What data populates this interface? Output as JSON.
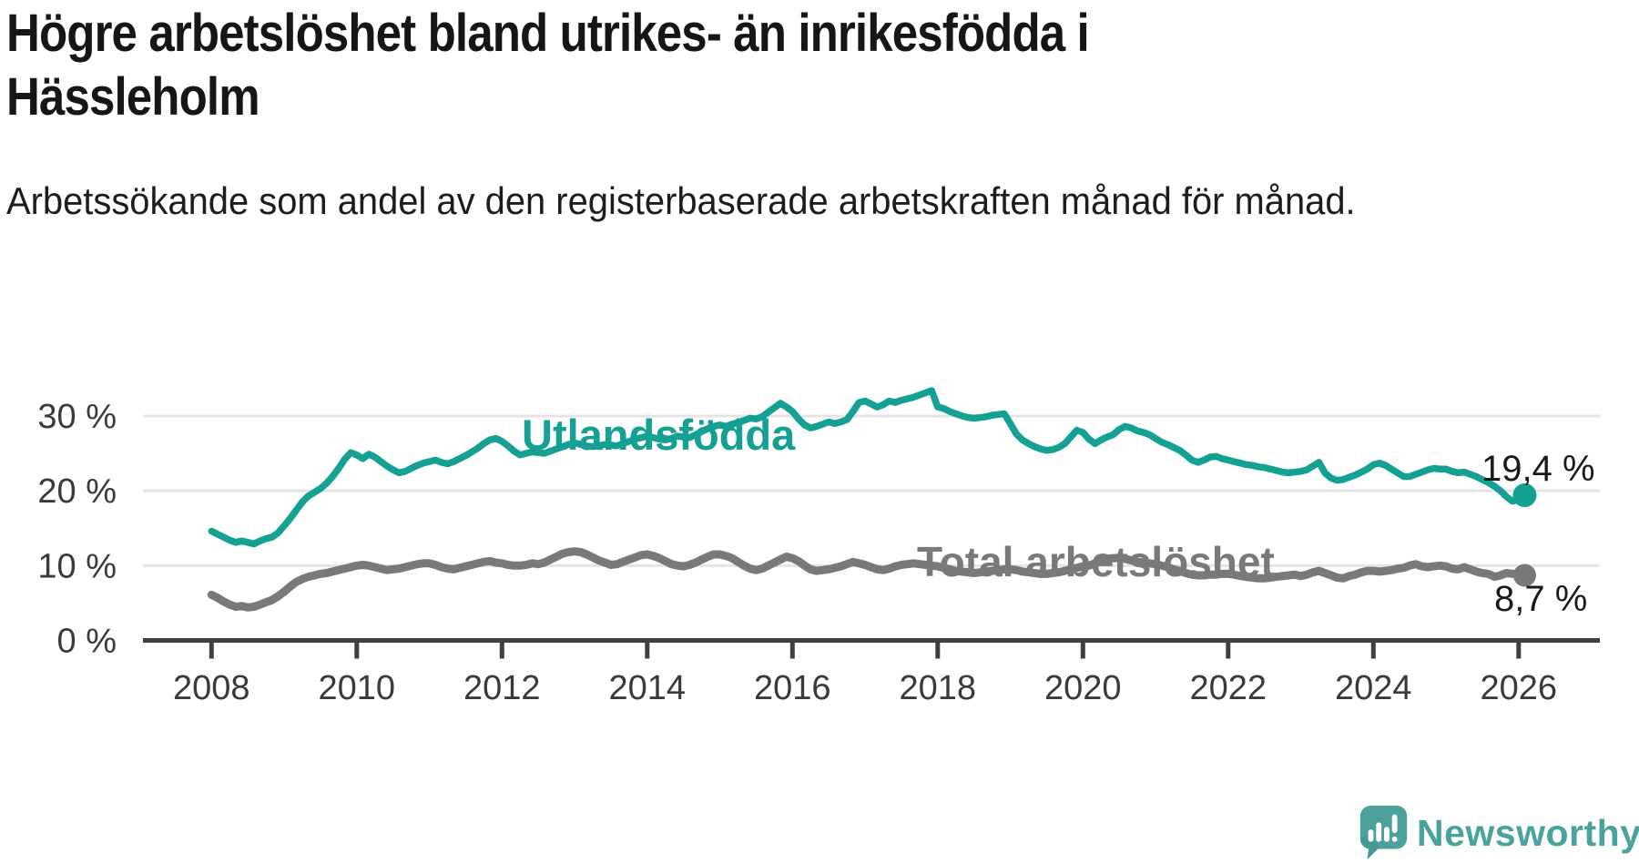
{
  "header": {
    "title": "Högre arbetslöshet bland utrikes- än inrikesfödda i\nHässleholm",
    "subtitle": "Arbetssökande som andel av den registerbaserade arbetskraften månad för månad."
  },
  "chart_data": {
    "type": "line",
    "unit": "%",
    "start_month": "2008-01",
    "end_month": "2026-02",
    "frequency": "monthly",
    "grid": "horizontal",
    "ylim": [
      0,
      35
    ],
    "y_ticks": [
      0,
      10,
      20,
      30
    ],
    "y_tick_labels": [
      "0 %",
      "10 %",
      "20 %",
      "30 %"
    ],
    "x_tick_years": [
      2008,
      2010,
      2012,
      2014,
      2016,
      2018,
      2020,
      2022,
      2024,
      2026
    ],
    "x_tick_labels": [
      "2008",
      "2010",
      "2012",
      "2014",
      "2016",
      "2018",
      "2020",
      "2022",
      "2024",
      "2026"
    ],
    "series": [
      {
        "name": "Utlandsfödda",
        "color": "#14a092",
        "end_label": "19,4 %",
        "end_value": 19.4,
        "values": [
          14.6,
          14.2,
          13.8,
          13.4,
          13.1,
          13.3,
          13.1,
          12.9,
          13.3,
          13.6,
          13.8,
          14.4,
          15.3,
          16.3,
          17.4,
          18.5,
          19.3,
          19.8,
          20.3,
          21.0,
          21.9,
          23.0,
          24.2,
          25.1,
          24.8,
          24.3,
          24.9,
          24.5,
          23.9,
          23.3,
          22.8,
          22.4,
          22.6,
          23.0,
          23.4,
          23.7,
          23.9,
          24.1,
          23.8,
          23.6,
          23.9,
          24.3,
          24.7,
          25.2,
          25.7,
          26.3,
          26.8,
          27.0,
          26.6,
          26.0,
          25.3,
          24.8,
          25.0,
          25.2,
          25.1,
          25.0,
          25.3,
          25.6,
          25.9,
          26.2,
          26.4,
          26.2,
          26.0,
          25.9,
          26.0,
          26.2,
          26.1,
          26.0,
          26.3,
          26.6,
          26.9,
          27.1,
          27.3,
          27.1,
          26.9,
          26.8,
          27.0,
          27.3,
          27.2,
          27.1,
          27.5,
          27.9,
          28.3,
          28.6,
          28.8,
          28.6,
          28.9,
          29.1,
          29.4,
          29.7,
          29.6,
          29.9,
          30.5,
          31.1,
          31.7,
          31.2,
          30.6,
          29.6,
          28.8,
          28.4,
          28.6,
          28.9,
          29.2,
          29.0,
          29.2,
          29.5,
          30.6,
          31.8,
          32.0,
          31.6,
          31.2,
          31.5,
          32.0,
          31.8,
          32.1,
          32.3,
          32.5,
          32.8,
          33.1,
          33.4,
          31.2,
          31.0,
          30.6,
          30.3,
          30.0,
          29.8,
          29.7,
          29.8,
          29.9,
          30.1,
          30.2,
          30.3,
          29.0,
          27.6,
          26.8,
          26.3,
          25.9,
          25.6,
          25.4,
          25.5,
          25.8,
          26.3,
          27.2,
          28.1,
          27.8,
          26.9,
          26.3,
          26.8,
          27.2,
          27.5,
          28.2,
          28.6,
          28.4,
          28.0,
          27.8,
          27.5,
          27.0,
          26.5,
          26.2,
          25.8,
          25.4,
          24.8,
          24.1,
          23.8,
          24.1,
          24.5,
          24.6,
          24.3,
          24.1,
          23.9,
          23.7,
          23.5,
          23.4,
          23.2,
          23.1,
          22.9,
          22.7,
          22.5,
          22.4,
          22.5,
          22.6,
          22.8,
          23.3,
          23.8,
          22.4,
          21.7,
          21.4,
          21.5,
          21.8,
          22.1,
          22.5,
          22.9,
          23.5,
          23.7,
          23.4,
          22.9,
          22.4,
          21.9,
          21.9,
          22.2,
          22.5,
          22.8,
          23.0,
          22.9,
          22.9,
          22.6,
          22.4,
          22.5,
          22.2,
          21.9,
          21.5,
          21.1,
          20.6,
          20.0,
          19.2,
          18.6,
          18.8,
          19.4
        ]
      },
      {
        "name": "Total arbetslöshet",
        "color": "#7a787b",
        "end_label": "8,7 %",
        "end_value": 8.7,
        "values": [
          6.1,
          5.7,
          5.2,
          4.8,
          4.5,
          4.6,
          4.4,
          4.5,
          4.8,
          5.1,
          5.4,
          5.9,
          6.5,
          7.2,
          7.8,
          8.2,
          8.5,
          8.7,
          8.9,
          9.0,
          9.2,
          9.4,
          9.6,
          9.8,
          10.0,
          10.1,
          10.0,
          9.8,
          9.6,
          9.4,
          9.5,
          9.6,
          9.8,
          10.0,
          10.2,
          10.3,
          10.3,
          10.1,
          9.8,
          9.6,
          9.5,
          9.7,
          9.9,
          10.1,
          10.3,
          10.5,
          10.6,
          10.4,
          10.3,
          10.1,
          10.0,
          10.0,
          10.1,
          10.3,
          10.2,
          10.4,
          10.8,
          11.2,
          11.6,
          11.8,
          11.9,
          11.8,
          11.5,
          11.1,
          10.7,
          10.4,
          10.1,
          10.2,
          10.5,
          10.8,
          11.1,
          11.4,
          11.5,
          11.3,
          11.0,
          10.6,
          10.2,
          10.0,
          9.9,
          10.1,
          10.4,
          10.8,
          11.2,
          11.5,
          11.5,
          11.3,
          11.0,
          10.5,
          10.0,
          9.6,
          9.4,
          9.6,
          10.0,
          10.4,
          10.8,
          11.2,
          11.0,
          10.6,
          10.0,
          9.5,
          9.3,
          9.4,
          9.5,
          9.7,
          9.9,
          10.2,
          10.5,
          10.3,
          10.1,
          9.8,
          9.5,
          9.4,
          9.6,
          9.9,
          10.1,
          10.2,
          10.3,
          10.2,
          10.1,
          10.0,
          9.9,
          9.7,
          9.5,
          9.3,
          9.2,
          9.1,
          9.0,
          9.1,
          9.2,
          9.3,
          9.4,
          9.5,
          9.5,
          9.4,
          9.2,
          9.1,
          9.0,
          8.9,
          8.9,
          9.0,
          9.1,
          9.3,
          9.5,
          9.7,
          9.9,
          10.0,
          10.3,
          10.7,
          10.9,
          11.0,
          11.0,
          10.9,
          10.7,
          10.5,
          10.4,
          10.3,
          10.2,
          10.0,
          9.8,
          9.5,
          9.3,
          9.0,
          8.8,
          8.7,
          8.7,
          8.8,
          8.8,
          8.9,
          8.9,
          8.8,
          8.6,
          8.5,
          8.4,
          8.3,
          8.3,
          8.4,
          8.5,
          8.6,
          8.7,
          8.8,
          8.6,
          8.8,
          9.1,
          9.3,
          9.0,
          8.7,
          8.4,
          8.3,
          8.6,
          8.8,
          9.1,
          9.3,
          9.3,
          9.2,
          9.3,
          9.4,
          9.6,
          9.7,
          10.0,
          10.2,
          9.9,
          9.8,
          9.9,
          10.0,
          9.9,
          9.6,
          9.5,
          9.8,
          9.5,
          9.2,
          9.0,
          8.9,
          8.5,
          8.7,
          9.0,
          8.9,
          8.9,
          8.7
        ]
      }
    ]
  },
  "footer": {
    "logo_text": "Newsworthy",
    "logo_color": "#4aa29d"
  }
}
